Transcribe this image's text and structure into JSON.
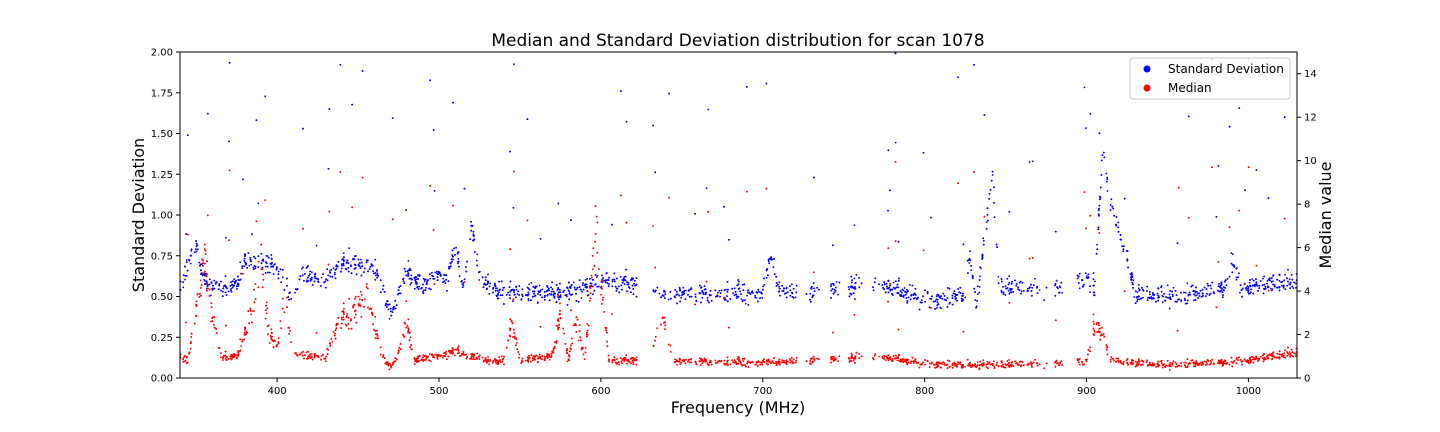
{
  "chart_data": {
    "type": "scatter",
    "title": "Median and Standard Deviation distribution for scan 1078",
    "xlabel": "Frequency (MHz)",
    "ylabel_left": "Standard Deviation",
    "ylabel_right": "Median value",
    "xlim": [
      340,
      1030
    ],
    "ylim_left": [
      0,
      2
    ],
    "ylim_right": [
      0,
      15
    ],
    "x_ticks": [
      400,
      500,
      600,
      700,
      800,
      900,
      1000
    ],
    "y_ticks_left": [
      "0.00",
      "0.25",
      "0.50",
      "0.75",
      "1.00",
      "1.25",
      "1.50",
      "1.75",
      "2.00"
    ],
    "y_ticks_right": [
      0,
      2,
      4,
      6,
      8,
      10,
      12,
      14
    ],
    "grid": false,
    "legend_position": "top-right",
    "series": [
      {
        "name": "Standard Deviation",
        "axis": "left",
        "color": "#0000ff",
        "profile": [
          [
            340,
            0.55
          ],
          [
            345,
            0.7
          ],
          [
            350,
            0.8
          ],
          [
            355,
            0.6
          ],
          [
            365,
            0.55
          ],
          [
            375,
            0.58
          ],
          [
            380,
            0.72
          ],
          [
            390,
            0.72
          ],
          [
            400,
            0.68
          ],
          [
            405,
            0.55
          ],
          [
            410,
            0.5
          ],
          [
            415,
            0.65
          ],
          [
            425,
            0.6
          ],
          [
            435,
            0.65
          ],
          [
            440,
            0.72
          ],
          [
            450,
            0.7
          ],
          [
            460,
            0.68
          ],
          [
            465,
            0.55
          ],
          [
            470,
            0.4
          ],
          [
            480,
            0.65
          ],
          [
            490,
            0.55
          ],
          [
            500,
            0.65
          ],
          [
            505,
            0.6
          ],
          [
            510,
            0.8
          ],
          [
            515,
            0.55
          ],
          [
            520,
            0.95
          ],
          [
            525,
            0.6
          ],
          [
            530,
            0.58
          ],
          [
            540,
            0.52
          ],
          [
            560,
            0.52
          ],
          [
            575,
            0.52
          ],
          [
            590,
            0.55
          ],
          [
            600,
            0.6
          ],
          [
            615,
            0.58
          ],
          [
            640,
            0.52
          ],
          [
            700,
            0.52
          ],
          [
            705,
            0.75
          ],
          [
            710,
            0.55
          ],
          [
            720,
            0.52
          ],
          [
            770,
            0.58
          ],
          [
            790,
            0.52
          ],
          [
            810,
            0.47
          ],
          [
            825,
            0.52
          ],
          [
            828,
            0.75
          ],
          [
            832,
            0.45
          ],
          [
            842,
            1.25
          ],
          [
            846,
            0.55
          ],
          [
            870,
            0.55
          ],
          [
            900,
            0.6
          ],
          [
            905,
            0.55
          ],
          [
            910,
            1.4
          ],
          [
            915,
            1.05
          ],
          [
            925,
            0.75
          ],
          [
            930,
            0.52
          ],
          [
            960,
            0.5
          ],
          [
            985,
            0.55
          ],
          [
            990,
            0.72
          ],
          [
            995,
            0.55
          ],
          [
            1030,
            0.6
          ]
        ],
        "spread": 0.06,
        "outlier_range": [
          0.8,
          2.0
        ]
      },
      {
        "name": "Median",
        "axis": "right",
        "color": "#ff0000",
        "profile": [
          [
            340,
            1.0
          ],
          [
            345,
            0.8
          ],
          [
            350,
            3.0
          ],
          [
            355,
            5.5
          ],
          [
            360,
            3.0
          ],
          [
            365,
            1.0
          ],
          [
            375,
            1.0
          ],
          [
            380,
            2.0
          ],
          [
            385,
            3.5
          ],
          [
            390,
            5.5
          ],
          [
            395,
            2.0
          ],
          [
            400,
            1.5
          ],
          [
            405,
            3.5
          ],
          [
            410,
            1.2
          ],
          [
            420,
            1.0
          ],
          [
            430,
            1.0
          ],
          [
            440,
            3.0
          ],
          [
            445,
            2.8
          ],
          [
            455,
            4.0
          ],
          [
            460,
            2.5
          ],
          [
            465,
            1.0
          ],
          [
            470,
            0.5
          ],
          [
            475,
            1.2
          ],
          [
            480,
            2.5
          ],
          [
            485,
            0.8
          ],
          [
            510,
            1.2
          ],
          [
            520,
            1.0
          ],
          [
            530,
            0.8
          ],
          [
            540,
            0.8
          ],
          [
            545,
            2.5
          ],
          [
            550,
            0.8
          ],
          [
            570,
            1.0
          ],
          [
            575,
            3.0
          ],
          [
            580,
            0.8
          ],
          [
            585,
            2.8
          ],
          [
            590,
            0.8
          ],
          [
            597,
            7.0
          ],
          [
            602,
            3.0
          ],
          [
            605,
            0.8
          ],
          [
            630,
            0.8
          ],
          [
            638,
            3.0
          ],
          [
            645,
            0.8
          ],
          [
            700,
            0.7
          ],
          [
            770,
            1.0
          ],
          [
            790,
            0.8
          ],
          [
            810,
            0.6
          ],
          [
            850,
            0.6
          ],
          [
            880,
            0.7
          ],
          [
            890,
            0.8
          ],
          [
            900,
            0.7
          ],
          [
            905,
            2.5
          ],
          [
            910,
            2.0
          ],
          [
            915,
            0.8
          ],
          [
            950,
            0.6
          ],
          [
            980,
            0.7
          ],
          [
            1000,
            0.8
          ],
          [
            1030,
            1.2
          ]
        ],
        "spread": 0.45,
        "outlier_range": [
          2.0,
          10.0
        ]
      }
    ]
  }
}
